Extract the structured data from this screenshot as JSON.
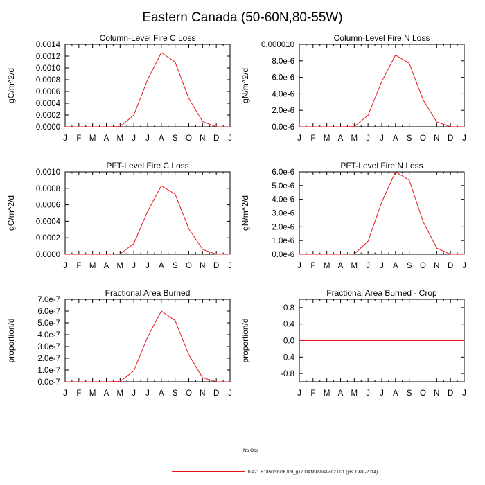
{
  "figure": {
    "title": "Eastern Canada (50-60N,80-55W)"
  },
  "legend": {
    "obs_label": "No Obs",
    "model_label": "b.e21.B1850cmip6.f09_g17.DAMIP-hist-co2.001 (yrs 1990-2014)"
  },
  "colors": {
    "model": "#e8141c",
    "obs": "#000000",
    "axes": "#000000"
  },
  "chart_data": [
    {
      "type": "line",
      "title": "Column-Level Fire C Loss",
      "ylabel": "gC/m^2/d",
      "x": [
        "J",
        "F",
        "M",
        "A",
        "M",
        "J",
        "J",
        "A",
        "S",
        "O",
        "N",
        "D",
        "J"
      ],
      "ylim": [
        0,
        0.0014
      ],
      "yticks": [
        0,
        0.0002,
        0.0004,
        0.0006,
        0.0008,
        0.001,
        0.0012,
        0.0014
      ],
      "yticklabels": [
        "0.0000",
        "0.0002",
        "0.0004",
        "0.0006",
        "0.0008",
        "0.0010",
        "0.0012",
        "0.0014"
      ],
      "series": [
        {
          "name": "b.e21.B1850cmip6.f09_g17.DAMIP-hist-co2.001 (yrs 1990-2014)",
          "values": [
            0,
            0,
            0,
            0,
            5e-06,
            0.0002,
            0.0008,
            0.00126,
            0.0011,
            0.00048,
            9e-05,
            0,
            0
          ]
        }
      ]
    },
    {
      "type": "line",
      "title": "Column-Level Fire N Loss",
      "ylabel": "gN/m^2/d",
      "x": [
        "J",
        "F",
        "M",
        "A",
        "M",
        "J",
        "J",
        "A",
        "S",
        "O",
        "N",
        "D",
        "J"
      ],
      "ylim": [
        0,
        1e-05
      ],
      "yticks": [
        0,
        2e-06,
        4e-06,
        6e-06,
        8e-06,
        1e-05
      ],
      "yticklabels": [
        "0.0e-6",
        "2.0e-6",
        "4.0e-6",
        "6.0e-6",
        "8.0e-6",
        "0.000010"
      ],
      "series": [
        {
          "name": "b.e21.B1850cmip6.f09_g17.DAMIP-hist-co2.001 (yrs 1990-2014)",
          "values": [
            0,
            0,
            0,
            0,
            3e-08,
            1.4e-06,
            5.5e-06,
            8.7e-06,
            7.7e-06,
            3.3e-06,
            6e-07,
            0,
            0
          ]
        }
      ]
    },
    {
      "type": "line",
      "title": "PFT-Level Fire C Loss",
      "ylabel": "gC/m^2/d",
      "x": [
        "J",
        "F",
        "M",
        "A",
        "M",
        "J",
        "J",
        "A",
        "S",
        "O",
        "N",
        "D",
        "J"
      ],
      "ylim": [
        0,
        0.001
      ],
      "yticks": [
        0,
        0.0002,
        0.0004,
        0.0006,
        0.0008,
        0.001
      ],
      "yticklabels": [
        "0.0000",
        "0.0002",
        "0.0004",
        "0.0006",
        "0.0008",
        "0.0010"
      ],
      "series": [
        {
          "name": "b.e21.B1850cmip6.f09_g17.DAMIP-hist-co2.001 (yrs 1990-2014)",
          "values": [
            0,
            0,
            0,
            0,
            4e-06,
            0.00013,
            0.00052,
            0.00083,
            0.00073,
            0.00031,
            6e-05,
            0,
            0
          ]
        }
      ]
    },
    {
      "type": "line",
      "title": "PFT-Level Fire N Loss",
      "ylabel": "gN/m^2/d",
      "x": [
        "J",
        "F",
        "M",
        "A",
        "M",
        "J",
        "J",
        "A",
        "S",
        "O",
        "N",
        "D",
        "J"
      ],
      "ylim": [
        0,
        6e-06
      ],
      "yticks": [
        0,
        1e-06,
        2e-06,
        3e-06,
        4e-06,
        5e-06,
        6e-06
      ],
      "yticklabels": [
        "0.0e-6",
        "1.0e-6",
        "2.0e-6",
        "3.0e-6",
        "4.0e-6",
        "5.0e-6",
        "6.0e-6"
      ],
      "series": [
        {
          "name": "b.e21.B1850cmip6.f09_g17.DAMIP-hist-co2.001 (yrs 1990-2014)",
          "values": [
            0,
            0,
            0,
            0,
            2e-08,
            9.5e-07,
            3.8e-06,
            6e-06,
            5.4e-06,
            2.4e-06,
            4.5e-07,
            0,
            0
          ]
        }
      ]
    },
    {
      "type": "line",
      "title": "Fractional Area Burned",
      "ylabel": "proportion/d",
      "x": [
        "J",
        "F",
        "M",
        "A",
        "M",
        "J",
        "J",
        "A",
        "S",
        "O",
        "N",
        "D",
        "J"
      ],
      "ylim": [
        0,
        7e-07
      ],
      "yticks": [
        0,
        1e-07,
        2e-07,
        3e-07,
        4e-07,
        5e-07,
        6e-07,
        7e-07
      ],
      "yticklabels": [
        "0.0e-7",
        "1.0e-7",
        "2.0e-7",
        "3.0e-7",
        "4.0e-7",
        "5.0e-7",
        "6.0e-7",
        "7.0e-7"
      ],
      "series": [
        {
          "name": "b.e21.B1850cmip6.f09_g17.DAMIP-hist-co2.001 (yrs 1990-2014)",
          "values": [
            0,
            0,
            0,
            0,
            3e-09,
            9.3e-08,
            3.8e-07,
            6e-07,
            5.2e-07,
            2.3e-07,
            3.5e-08,
            0,
            0
          ]
        }
      ]
    },
    {
      "type": "line",
      "title": "Fractional Area Burned - Crop",
      "ylabel": "proportion/d",
      "x": [
        "J",
        "F",
        "M",
        "A",
        "M",
        "J",
        "J",
        "A",
        "S",
        "O",
        "N",
        "D",
        "J"
      ],
      "ylim": [
        -1,
        1
      ],
      "yticks": [
        -0.8,
        -0.4,
        0,
        0.4,
        0.8
      ],
      "yticklabels": [
        "-0.8",
        "-0.4",
        "0.0",
        "0.4",
        "0.8"
      ],
      "series": [
        {
          "name": "b.e21.B1850cmip6.f09_g17.DAMIP-hist-co2.001 (yrs 1990-2014)",
          "values": [
            0,
            0,
            0,
            0,
            0,
            0,
            0,
            0,
            0,
            0,
            0,
            0,
            0
          ]
        }
      ]
    }
  ]
}
